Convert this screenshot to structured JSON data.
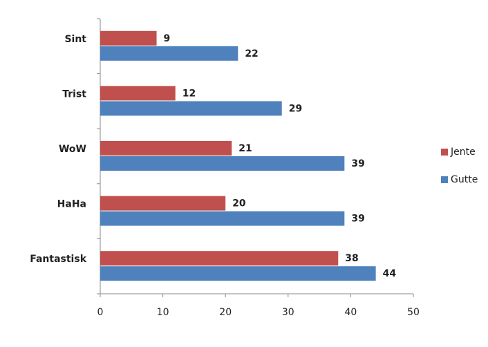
{
  "chart_data": {
    "type": "bar",
    "orientation": "horizontal",
    "categories": [
      "Sint",
      "Trist",
      "WoW",
      "HaHa",
      "Fantastisk"
    ],
    "series": [
      {
        "name": "Jente",
        "color": "#c0504d",
        "values": [
          9,
          12,
          21,
          20,
          38
        ]
      },
      {
        "name": "Gutte",
        "color": "#4f81bd",
        "values": [
          22,
          29,
          39,
          39,
          44
        ]
      }
    ],
    "xlim": [
      0,
      50
    ],
    "xticks": [
      0,
      10,
      20,
      30,
      40,
      50
    ],
    "grid": false,
    "legend": "right"
  }
}
